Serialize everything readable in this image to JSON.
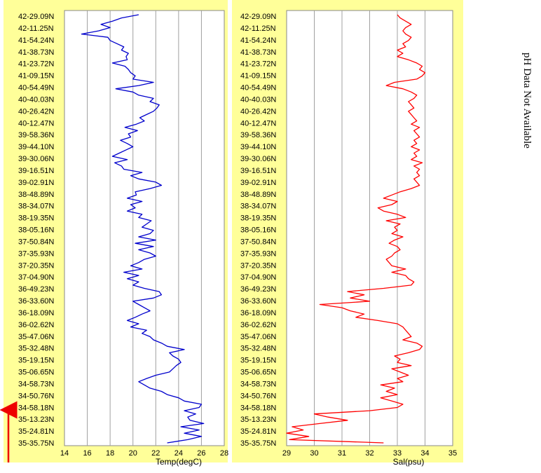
{
  "chart_data": [
    {
      "type": "line",
      "xlabel": "Temp(degC)",
      "xlim": [
        14,
        28
      ],
      "xticks": [
        14,
        16,
        18,
        20,
        22,
        24,
        26,
        28
      ],
      "color": "#0000cc",
      "y_labels": [
        "42-29.09N",
        "42-11.25N",
        "41-54.24N",
        "41-38.73N",
        "41-23.72N",
        "41-09.15N",
        "40-54.49N",
        "40-40.03N",
        "40-26.42N",
        "40-12.47N",
        "39-58.36N",
        "39-44.10N",
        "39-30.06N",
        "39-16.51N",
        "39-02.91N",
        "38-48.89N",
        "38-34.07N",
        "38-19.35N",
        "38-05.16N",
        "37-50.84N",
        "37-35.93N",
        "37-20.35N",
        "37-04.90N",
        "36-49.23N",
        "36-33.60N",
        "36-18.09N",
        "36-02.62N",
        "35-47.06N",
        "35-32.48N",
        "35-19.15N",
        "35-06.65N",
        "34-58.73N",
        "34-50.76N",
        "34-58.18N",
        "35-13.23N",
        "35-24.81N",
        "35-35.75N"
      ],
      "series": [
        {
          "values": [
            23.0,
            24.8,
            26.0,
            24.5,
            25.8,
            24.2,
            26.2,
            25.0,
            24.8,
            25.5,
            24.5,
            25.8,
            26.0,
            24.5,
            24.0,
            23.0,
            22.5,
            21.5,
            21.0,
            20.5,
            21.2,
            22.0,
            23.2,
            23.5,
            23.8,
            24.2,
            24.0,
            23.5,
            23.2,
            24.5,
            23.0,
            22.5,
            21.8,
            21.5,
            20.8,
            21.2,
            19.8,
            20.5,
            19.5,
            20.2,
            20.8,
            21.5,
            21.0,
            20.5,
            20.0,
            21.8,
            22.5,
            22.3,
            21.0,
            20.0,
            20.5,
            19.5,
            20.5,
            19.2,
            20.8,
            19.8,
            20.5,
            21.0,
            22.0,
            21.5,
            20.5,
            21.8,
            20.2,
            22.0,
            20.5,
            21.5,
            21.8,
            20.8,
            21.2,
            21.6,
            20.5,
            20.8,
            19.5,
            20.2,
            19.8,
            20.8,
            19.5,
            20.3,
            20.2,
            21.5,
            22.5,
            22.0,
            20.5,
            19.8,
            20.8,
            19.2,
            19.0,
            18.4,
            19.5,
            18.2,
            18.8,
            19.4,
            20.0,
            19.5,
            18.9,
            19.8,
            19.6,
            20.4,
            19.3,
            20.3,
            21.0,
            20.6,
            21.2,
            21.8,
            22.1,
            22.3,
            21.5,
            21.8,
            20.5,
            20.0,
            18.5,
            20.5,
            21.8,
            20.0,
            20.2,
            19.8,
            19.6,
            19.3,
            18.2,
            19.5,
            19.4,
            19.6,
            19.0,
            19.2,
            18.6,
            18.0,
            17.8,
            15.5,
            17.0,
            18.0,
            17.2,
            18.2,
            19.0,
            20.5
          ]
        }
      ]
    },
    {
      "type": "line",
      "xlabel": "Sal(psu)",
      "xlim": [
        29,
        35
      ],
      "xticks": [
        29,
        30,
        31,
        32,
        33,
        34,
        35
      ],
      "color": "#ff0000",
      "series": [
        {
          "values": [
            32.5,
            29.1,
            29.8,
            29.0,
            29.6,
            29.2,
            30.2,
            31.2,
            30.5,
            30.0,
            32.0,
            33.0,
            33.2,
            32.8,
            32.4,
            33.0,
            32.6,
            32.9,
            32.4,
            33.2,
            33.0,
            33.4,
            33.1,
            32.8,
            33.5,
            33.0,
            33.1,
            32.9,
            33.4,
            33.8,
            33.9,
            33.7,
            33.2,
            33.5,
            33.4,
            33.3,
            33.2,
            33.0,
            32.3,
            31.5,
            31.8,
            31.3,
            31.0,
            30.2,
            32.0,
            31.3,
            31.8,
            31.2,
            32.5,
            33.5,
            33.6,
            33.4,
            33.3,
            32.8,
            33.3,
            32.8,
            32.7,
            32.6,
            32.8,
            32.9,
            33.1,
            33.0,
            32.7,
            32.9,
            33.2,
            32.8,
            33.0,
            32.9,
            33.1,
            32.6,
            33.3,
            33.0,
            32.5,
            32.3,
            32.8,
            33.0,
            32.5,
            32.8,
            33.1,
            33.5,
            33.8,
            33.7,
            33.6,
            33.8,
            33.7,
            33.8,
            33.6,
            33.9,
            33.5,
            33.7,
            33.6,
            33.8,
            33.5,
            33.7,
            33.6,
            33.8,
            33.7,
            33.6,
            33.8,
            33.5,
            33.7,
            33.6,
            33.5,
            33.4,
            33.6,
            33.5,
            33.4,
            33.6,
            33.7,
            33.5,
            33.2,
            32.6,
            32.9,
            33.7,
            33.9,
            34.0,
            33.8,
            33.9,
            33.7,
            33.4,
            33.0,
            33.2,
            33.0,
            33.3,
            33.2,
            33.4,
            33.5,
            33.3,
            33.2,
            33.3,
            33.5,
            33.3,
            33.1,
            33.0
          ]
        }
      ]
    }
  ],
  "side_note": "pH Data Not Available"
}
